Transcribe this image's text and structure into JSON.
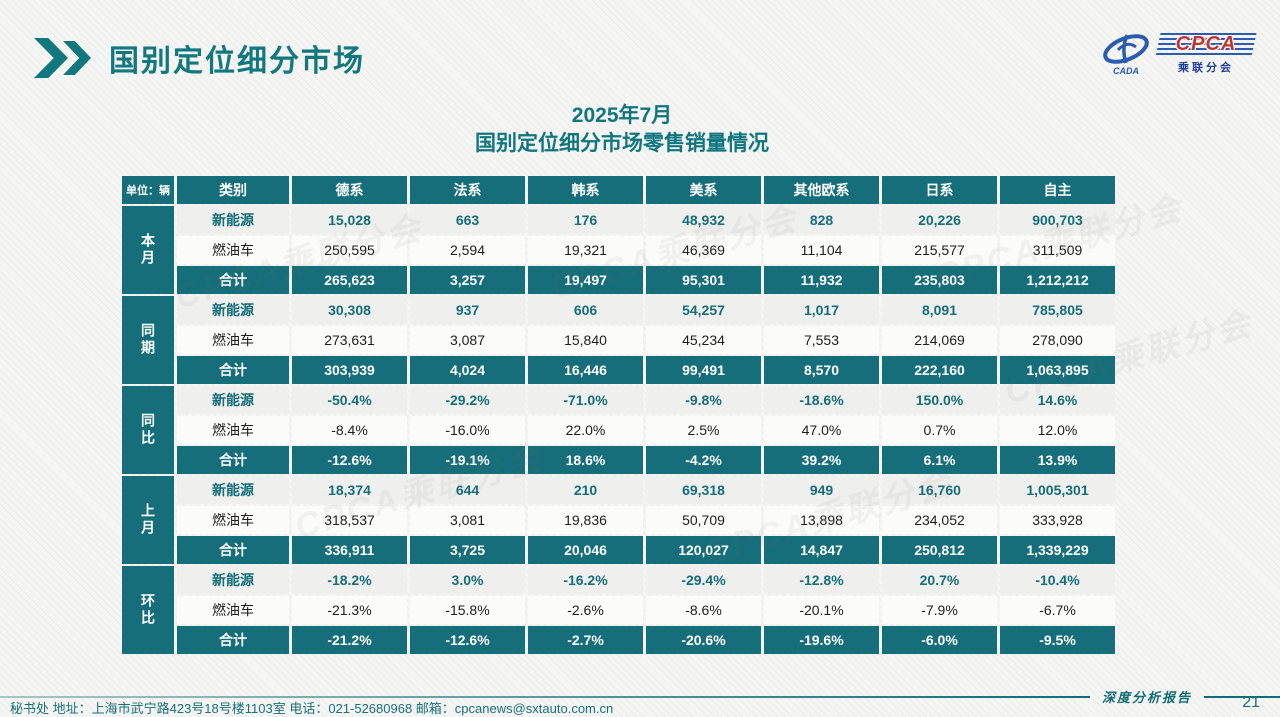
{
  "page": {
    "header_title": "国别定位细分市场",
    "page_number": "21",
    "footer_tagline": "深度分析报告",
    "footer_address": "秘书处   地址：上海市武宁路423号18号楼1103室  电话：021-52680968   邮箱：cpcanews@sxtauto.com.cn"
  },
  "logo": {
    "cada_text": "CADA",
    "cpca_text": "CPCA",
    "cpca_sub": "乘联分会",
    "blue": "#2a5db0",
    "red": "#c3322c"
  },
  "subtitle": {
    "line1": "2025年7月",
    "line2": "国别定位细分市场零售销量情况"
  },
  "decor": {
    "watermark_text": "CPCA乘联分会"
  },
  "colors": {
    "teal": "#156e7a",
    "title_teal": "#11787f"
  },
  "table": {
    "unit_label": "单位：辆",
    "category_header": "类别",
    "columns": [
      "德系",
      "法系",
      "韩系",
      "美系",
      "其他欧系",
      "日系",
      "自主"
    ],
    "groups": [
      {
        "label": "本月",
        "rows": [
          {
            "type": "nev",
            "label": "新能源",
            "values": [
              "15,028",
              "663",
              "176",
              "48,932",
              "828",
              "20,226",
              "900,703"
            ]
          },
          {
            "type": "fuel",
            "label": "燃油车",
            "values": [
              "250,595",
              "2,594",
              "19,321",
              "46,369",
              "11,104",
              "215,577",
              "311,509"
            ]
          },
          {
            "type": "total",
            "label": "合计",
            "values": [
              "265,623",
              "3,257",
              "19,497",
              "95,301",
              "11,932",
              "235,803",
              "1,212,212"
            ]
          }
        ]
      },
      {
        "label": "同期",
        "rows": [
          {
            "type": "nev",
            "label": "新能源",
            "values": [
              "30,308",
              "937",
              "606",
              "54,257",
              "1,017",
              "8,091",
              "785,805"
            ]
          },
          {
            "type": "fuel",
            "label": "燃油车",
            "values": [
              "273,631",
              "3,087",
              "15,840",
              "45,234",
              "7,553",
              "214,069",
              "278,090"
            ]
          },
          {
            "type": "total",
            "label": "合计",
            "values": [
              "303,939",
              "4,024",
              "16,446",
              "99,491",
              "8,570",
              "222,160",
              "1,063,895"
            ]
          }
        ]
      },
      {
        "label": "同比",
        "rows": [
          {
            "type": "nev",
            "label": "新能源",
            "values": [
              "-50.4%",
              "-29.2%",
              "-71.0%",
              "-9.8%",
              "-18.6%",
              "150.0%",
              "14.6%"
            ]
          },
          {
            "type": "fuel",
            "label": "燃油车",
            "values": [
              "-8.4%",
              "-16.0%",
              "22.0%",
              "2.5%",
              "47.0%",
              "0.7%",
              "12.0%"
            ]
          },
          {
            "type": "total",
            "label": "合计",
            "values": [
              "-12.6%",
              "-19.1%",
              "18.6%",
              "-4.2%",
              "39.2%",
              "6.1%",
              "13.9%"
            ]
          }
        ]
      },
      {
        "label": "上月",
        "rows": [
          {
            "type": "nev",
            "label": "新能源",
            "values": [
              "18,374",
              "644",
              "210",
              "69,318",
              "949",
              "16,760",
              "1,005,301"
            ]
          },
          {
            "type": "fuel",
            "label": "燃油车",
            "values": [
              "318,537",
              "3,081",
              "19,836",
              "50,709",
              "13,898",
              "234,052",
              "333,928"
            ]
          },
          {
            "type": "total",
            "label": "合计",
            "values": [
              "336,911",
              "3,725",
              "20,046",
              "120,027",
              "14,847",
              "250,812",
              "1,339,229"
            ]
          }
        ]
      },
      {
        "label": "环比",
        "rows": [
          {
            "type": "nev",
            "label": "新能源",
            "values": [
              "-18.2%",
              "3.0%",
              "-16.2%",
              "-29.4%",
              "-12.8%",
              "20.7%",
              "-10.4%"
            ]
          },
          {
            "type": "fuel",
            "label": "燃油车",
            "values": [
              "-21.3%",
              "-15.8%",
              "-2.6%",
              "-8.6%",
              "-20.1%",
              "-7.9%",
              "-6.7%"
            ]
          },
          {
            "type": "total",
            "label": "合计",
            "values": [
              "-21.2%",
              "-12.6%",
              "-2.7%",
              "-20.6%",
              "-19.6%",
              "-6.0%",
              "-9.5%"
            ]
          }
        ]
      }
    ]
  }
}
